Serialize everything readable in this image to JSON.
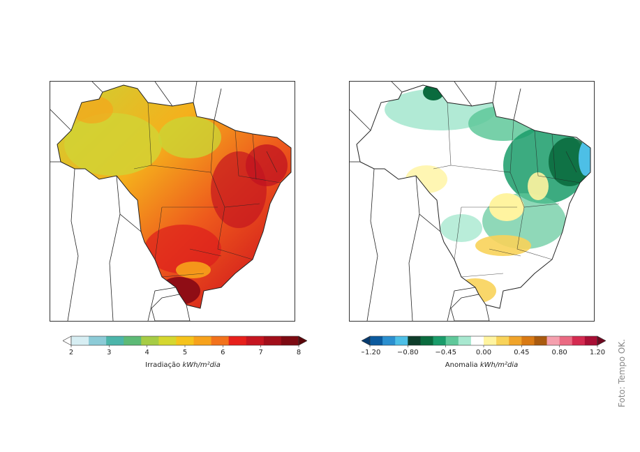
{
  "left_map": {
    "colorbar_ticks": [
      "2",
      "3",
      "4",
      "5",
      "6",
      "7",
      "8"
    ],
    "label_main": "Irradiação ",
    "label_unit": "kWh/m²dia",
    "colors": [
      "#d7eef3",
      "#8ccbd7",
      "#4cb5aa",
      "#5dba76",
      "#a6cc45",
      "#d5d72f",
      "#f5c31c",
      "#f7a21b",
      "#f2721c",
      "#e7201b",
      "#c51520",
      "#a10e1a",
      "#7d0a12"
    ]
  },
  "right_map": {
    "colorbar_ticks": [
      "−1.20",
      "−0.80",
      "−0.45",
      "0.00",
      "0.45",
      "0.80",
      "1.20"
    ],
    "label_main": "Anomalia ",
    "label_unit": "kWh/m²dia",
    "colors": [
      "#0b5a9e",
      "#2b8fcf",
      "#4dbfe6",
      "#0e3d2a",
      "#0a6b3e",
      "#1a9c6a",
      "#5fc89a",
      "#a8e8d0",
      "#ffffff",
      "#fff4a0",
      "#f8d35a",
      "#f0a42a",
      "#d97a14",
      "#a95a0f",
      "#f5a0ae",
      "#ea6a82",
      "#d42a50",
      "#a80f35"
    ]
  },
  "credit": "Foto: Tempo OK."
}
